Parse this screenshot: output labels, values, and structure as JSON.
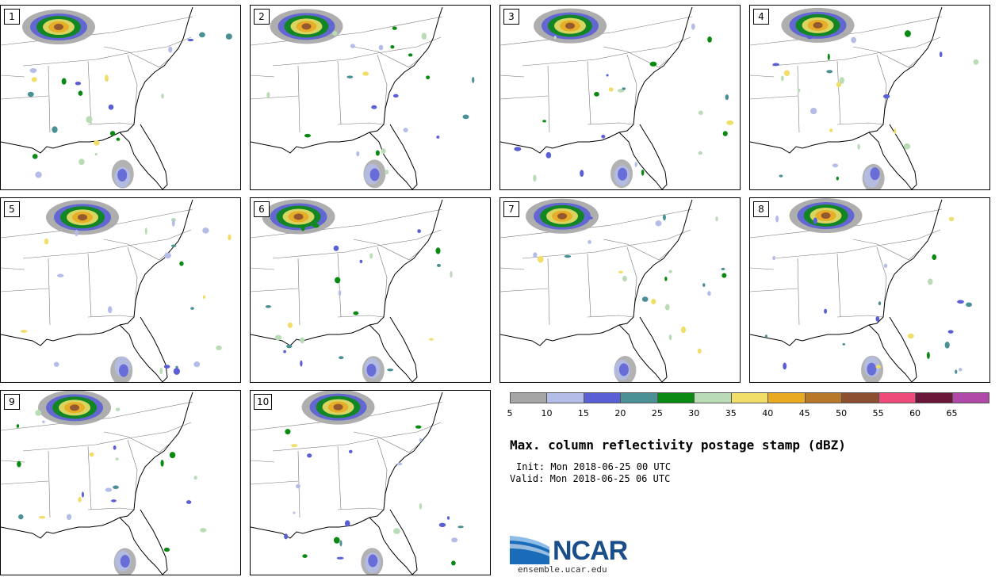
{
  "panels": [
    {
      "num": "1"
    },
    {
      "num": "2"
    },
    {
      "num": "3"
    },
    {
      "num": "4"
    },
    {
      "num": "5"
    },
    {
      "num": "6"
    },
    {
      "num": "7"
    },
    {
      "num": "8"
    },
    {
      "num": "9"
    },
    {
      "num": "10"
    }
  ],
  "colorbar": {
    "labels": [
      "5",
      "10",
      "15",
      "20",
      "25",
      "30",
      "35",
      "40",
      "45",
      "50",
      "55",
      "60",
      "65"
    ],
    "colors": [
      "#a5a5a5",
      "#b4bce8",
      "#5a5fd6",
      "#4a9094",
      "#0a8a12",
      "#b9dcb6",
      "#f0de68",
      "#e9aa22",
      "#b8782a",
      "#8c5030",
      "#ee4b7a",
      "#6a1638",
      "#b048a8"
    ]
  },
  "title": "Max. column reflectivity postage stamp (dBZ)",
  "init_label": "Init: Mon 2018-06-25 00 UTC",
  "valid_label": "Valid: Mon 2018-06-25 06 UTC",
  "logo": {
    "name": "NCAR",
    "url": "ensemble.ucar.edu"
  }
}
